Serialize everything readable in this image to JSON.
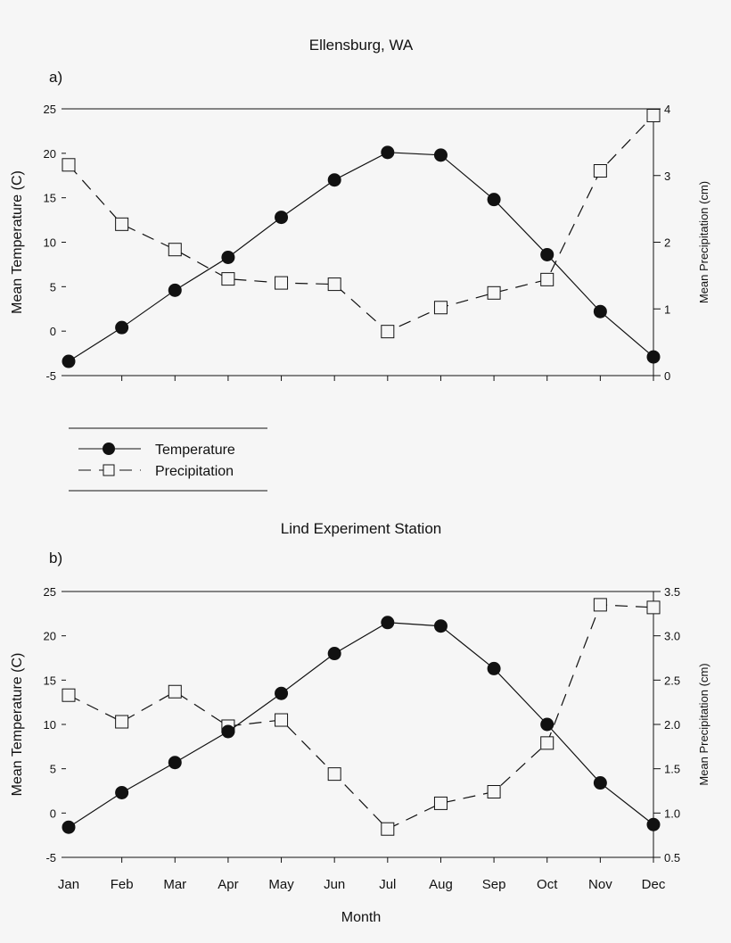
{
  "chart_data": [
    {
      "type": "line",
      "title": "Ellensburg, WA",
      "panel_label": "a)",
      "categories": [
        "Jan",
        "Feb",
        "Mar",
        "Apr",
        "May",
        "Jun",
        "Jul",
        "Aug",
        "Sep",
        "Oct",
        "Nov",
        "Dec"
      ],
      "show_x_tick_labels": false,
      "xlabel": "",
      "ylabel": "Mean Temperature (C)",
      "ylim": [
        -5,
        25
      ],
      "yticks": [
        "-5",
        "0",
        "5",
        "10",
        "15",
        "20",
        "25"
      ],
      "y2label": "Mean Precipitation (cm)",
      "y2lim": [
        0,
        4
      ],
      "y2ticks": [
        "0",
        "1",
        "2",
        "3",
        "4"
      ],
      "grid": false,
      "series": [
        {
          "name": "Temperature",
          "axis": "left",
          "style": "solid",
          "marker": "filled-circle",
          "values": [
            -3.4,
            0.4,
            4.6,
            8.3,
            12.8,
            17.0,
            20.1,
            19.8,
            14.8,
            8.6,
            2.2,
            -2.9
          ]
        },
        {
          "name": "Precipitation",
          "axis": "right",
          "style": "dashed",
          "marker": "open-square",
          "values": [
            3.16,
            2.27,
            1.89,
            1.45,
            1.39,
            1.37,
            0.66,
            1.02,
            1.24,
            1.44,
            3.07,
            3.9
          ]
        }
      ]
    },
    {
      "type": "line",
      "title": "Lind Experiment Station",
      "panel_label": "b)",
      "categories": [
        "Jan",
        "Feb",
        "Mar",
        "Apr",
        "May",
        "Jun",
        "Jul",
        "Aug",
        "Sep",
        "Oct",
        "Nov",
        "Dec"
      ],
      "show_x_tick_labels": true,
      "xlabel": "Month",
      "ylabel": "Mean Temperature (C)",
      "ylim": [
        -5,
        25
      ],
      "yticks": [
        "-5",
        "0",
        "5",
        "10",
        "15",
        "20",
        "25"
      ],
      "y2label": "Mean Precipitation (cm)",
      "y2lim": [
        0.5,
        3.5
      ],
      "y2ticks": [
        "0.5",
        "1.0",
        "1.5",
        "2.0",
        "2.5",
        "3.0",
        "3.5"
      ],
      "grid": false,
      "series": [
        {
          "name": "Temperature",
          "axis": "left",
          "style": "solid",
          "marker": "filled-circle",
          "values": [
            -1.6,
            2.3,
            5.7,
            9.2,
            13.5,
            18.0,
            21.5,
            21.1,
            16.3,
            10.0,
            3.4,
            -1.3
          ]
        },
        {
          "name": "Precipitation",
          "axis": "right",
          "style": "dashed",
          "marker": "open-square",
          "values": [
            2.33,
            2.03,
            2.37,
            1.98,
            2.05,
            1.44,
            0.82,
            1.11,
            1.24,
            1.79,
            3.35,
            3.32
          ]
        }
      ]
    }
  ],
  "legend": {
    "placement": "between-panels-left",
    "entries": [
      {
        "label": "Temperature",
        "style": "solid",
        "marker": "filled-circle"
      },
      {
        "label": "Precipitation",
        "style": "dashed",
        "marker": "open-square"
      }
    ]
  },
  "colors": {
    "ink": "#111111",
    "background": "#f6f6f6"
  }
}
